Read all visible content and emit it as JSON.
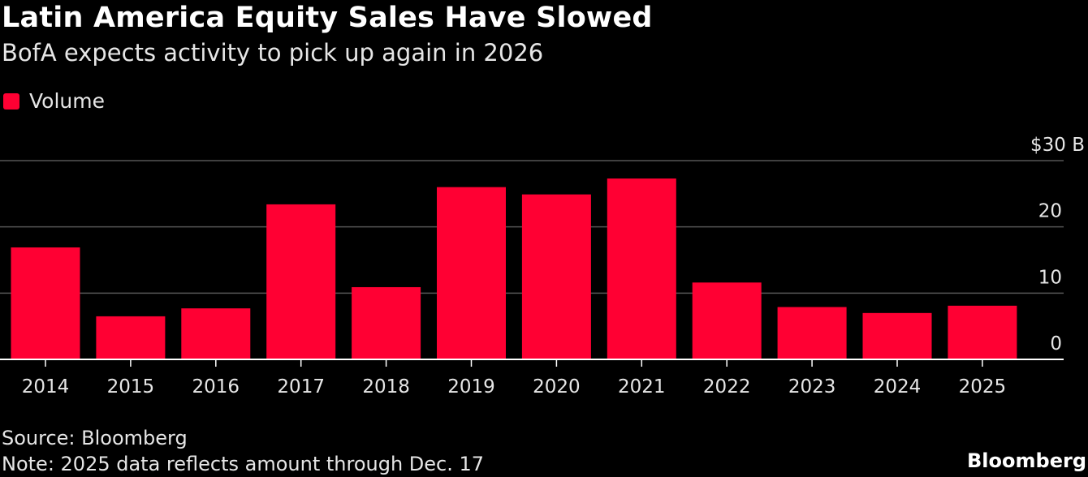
{
  "header": {
    "title": "Latin America Equity Sales Have Slowed",
    "subtitle": "BofA expects activity to pick up again in 2026"
  },
  "footer": {
    "source": "Source: Bloomberg",
    "note": "Note: 2025 data reflects amount through Dec. 17",
    "brand": "Bloomberg"
  },
  "colors": {
    "bar": "#ff0033",
    "background": "#000000",
    "grid": "#555555",
    "axis": "#ffffff"
  },
  "chart_data": {
    "type": "bar",
    "title": "Latin America Equity Sales Have Slowed",
    "subtitle": "BofA expects activity to pick up again in 2026",
    "categories": [
      "2014",
      "2015",
      "2016",
      "2017",
      "2018",
      "2019",
      "2020",
      "2021",
      "2022",
      "2023",
      "2024",
      "2025"
    ],
    "series": [
      {
        "name": "Volume",
        "values": [
          16.9,
          6.5,
          7.7,
          23.4,
          10.9,
          26.0,
          24.9,
          27.3,
          11.6,
          7.9,
          7.0,
          8.1
        ]
      }
    ],
    "ylim": [
      0,
      30
    ],
    "yticks": [
      0,
      10,
      20,
      30
    ],
    "ytick_labels": [
      "0",
      "10",
      "20",
      "$30 B"
    ],
    "xlabel": "",
    "ylabel": "",
    "grid": true,
    "legend": "top-left",
    "axis_side": "right"
  }
}
